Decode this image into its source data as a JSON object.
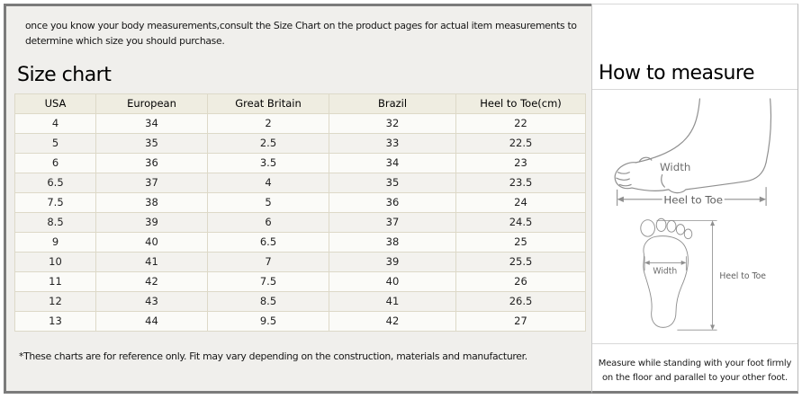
{
  "intro": {
    "lines": [
      "once you know your body measurements,consult the Size Chart on the product pages for actual item measurements to",
      "determine which size you should purchase."
    ]
  },
  "size_chart": {
    "title": "Size chart",
    "footnote": "*These charts are for reference only. Fit may vary depending on the construction, materials and manufacturer."
  },
  "chart_data": {
    "type": "table",
    "title": "Size chart",
    "columns": [
      "USA",
      "European",
      "Great Britain",
      "Brazil",
      "Heel to Toe(cm)"
    ],
    "rows": [
      [
        "4",
        "34",
        "2",
        "32",
        "22"
      ],
      [
        "5",
        "35",
        "2.5",
        "33",
        "22.5"
      ],
      [
        "6",
        "36",
        "3.5",
        "34",
        "23"
      ],
      [
        "6.5",
        "37",
        "4",
        "35",
        "23.5"
      ],
      [
        "7.5",
        "38",
        "5",
        "36",
        "24"
      ],
      [
        "8.5",
        "39",
        "6",
        "37",
        "24.5"
      ],
      [
        "9",
        "40",
        "6.5",
        "38",
        "25"
      ],
      [
        "10",
        "41",
        "7",
        "39",
        "25.5"
      ],
      [
        "11",
        "42",
        "7.5",
        "40",
        "26"
      ],
      [
        "12",
        "43",
        "8.5",
        "41",
        "26.5"
      ],
      [
        "13",
        "44",
        "9.5",
        "42",
        "27"
      ]
    ]
  },
  "how_to_measure": {
    "title": "How to measure",
    "side_view": {
      "width_label": "Width",
      "length_label": "Heel to Toe"
    },
    "bottom_view": {
      "width_label": "Width",
      "length_label": "Heel to Toe"
    },
    "note_lines": [
      "Measure while standing with your foot firmly",
      "on the floor and parallel to your other foot."
    ]
  },
  "colors": {
    "frame_border": "#7b7b7b",
    "left_panel_bg": "#f0efec",
    "table_header_bg": "#efede1",
    "table_row_bg": "#fbfbf8",
    "table_row_alt_bg": "#f3f2ee",
    "table_border": "#ddd9c8",
    "divider": "#d8d8d8",
    "diagram_stroke": "#8f8f8f",
    "diagram_label": "#6e6e6e"
  }
}
